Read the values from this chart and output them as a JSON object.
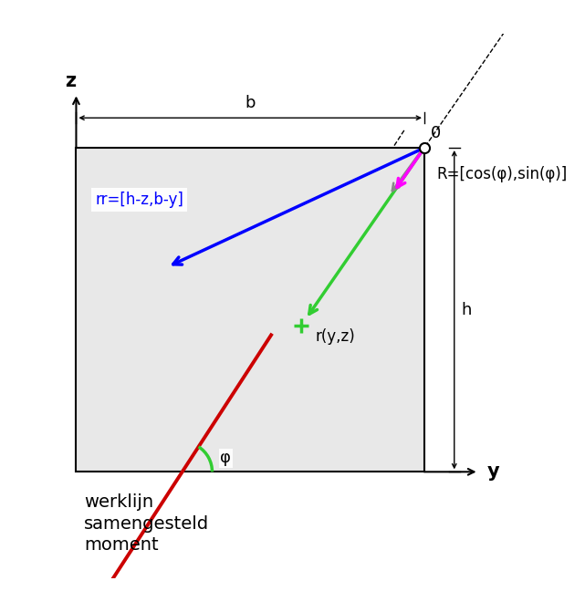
{
  "bg_color": "#e8e8e8",
  "label_b": "b",
  "label_h": "h",
  "label_z": "z",
  "label_y": "y",
  "label_0": "0",
  "label_r": "r(y,z)",
  "label_rr": "rr=[h-z,b-y]",
  "label_R": "R=[cos(φ),sin(φ)]",
  "label_phi": "φ",
  "label_werklijn": "werklijn\nsamengesteld\nmoment",
  "figsize": [
    6.41,
    6.71
  ],
  "dpi": 100
}
